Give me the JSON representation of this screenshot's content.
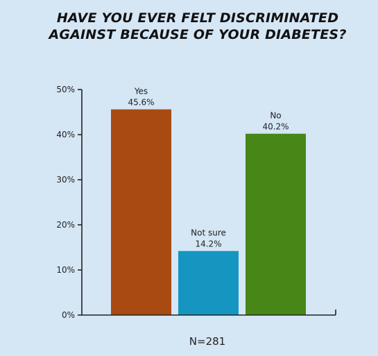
{
  "colors": {
    "background": "#d5e6f5",
    "axis": "#222222",
    "text": "#222222"
  },
  "chart_data": {
    "type": "bar",
    "title": "HAVE YOU EVER FELT DISCRIMINATED AGAINST BECAUSE OF YOUR DIABETES?",
    "categories": [
      "Yes",
      "Not sure",
      "No"
    ],
    "values": [
      45.6,
      14.2,
      40.2
    ],
    "value_labels": [
      "45.6%",
      "14.2%",
      "40.2%"
    ],
    "bar_colors": [
      "#a84a12",
      "#1596c0",
      "#468718"
    ],
    "ylim": [
      0,
      50
    ],
    "yticks": [
      0,
      10,
      20,
      30,
      40,
      50
    ],
    "ytick_labels": [
      "0%",
      "10%",
      "20%",
      "30%",
      "40%",
      "50%"
    ],
    "xlabel": "",
    "ylabel": "",
    "grid": false,
    "legend": "none",
    "note": "N=281"
  }
}
